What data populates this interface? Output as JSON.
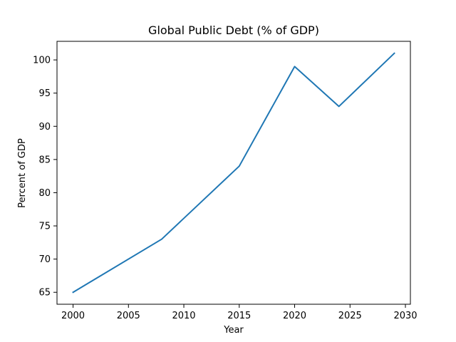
{
  "chart_data": {
    "type": "line",
    "title": "Global Public Debt (% of GDP)",
    "xlabel": "Year",
    "ylabel": "Percent of GDP",
    "x": [
      2000,
      2008,
      2015,
      2020,
      2024,
      2029
    ],
    "series": [
      {
        "values": [
          65,
          73,
          84,
          99,
          93,
          101
        ],
        "color": "#1f77b4"
      }
    ],
    "xlim": [
      1998.55,
      2030.45
    ],
    "ylim": [
      63.2,
      102.8
    ],
    "xticks": [
      2000,
      2005,
      2010,
      2015,
      2020,
      2025,
      2030
    ],
    "yticks": [
      65,
      70,
      75,
      80,
      85,
      90,
      95,
      100
    ],
    "grid": false,
    "legend": "none"
  }
}
